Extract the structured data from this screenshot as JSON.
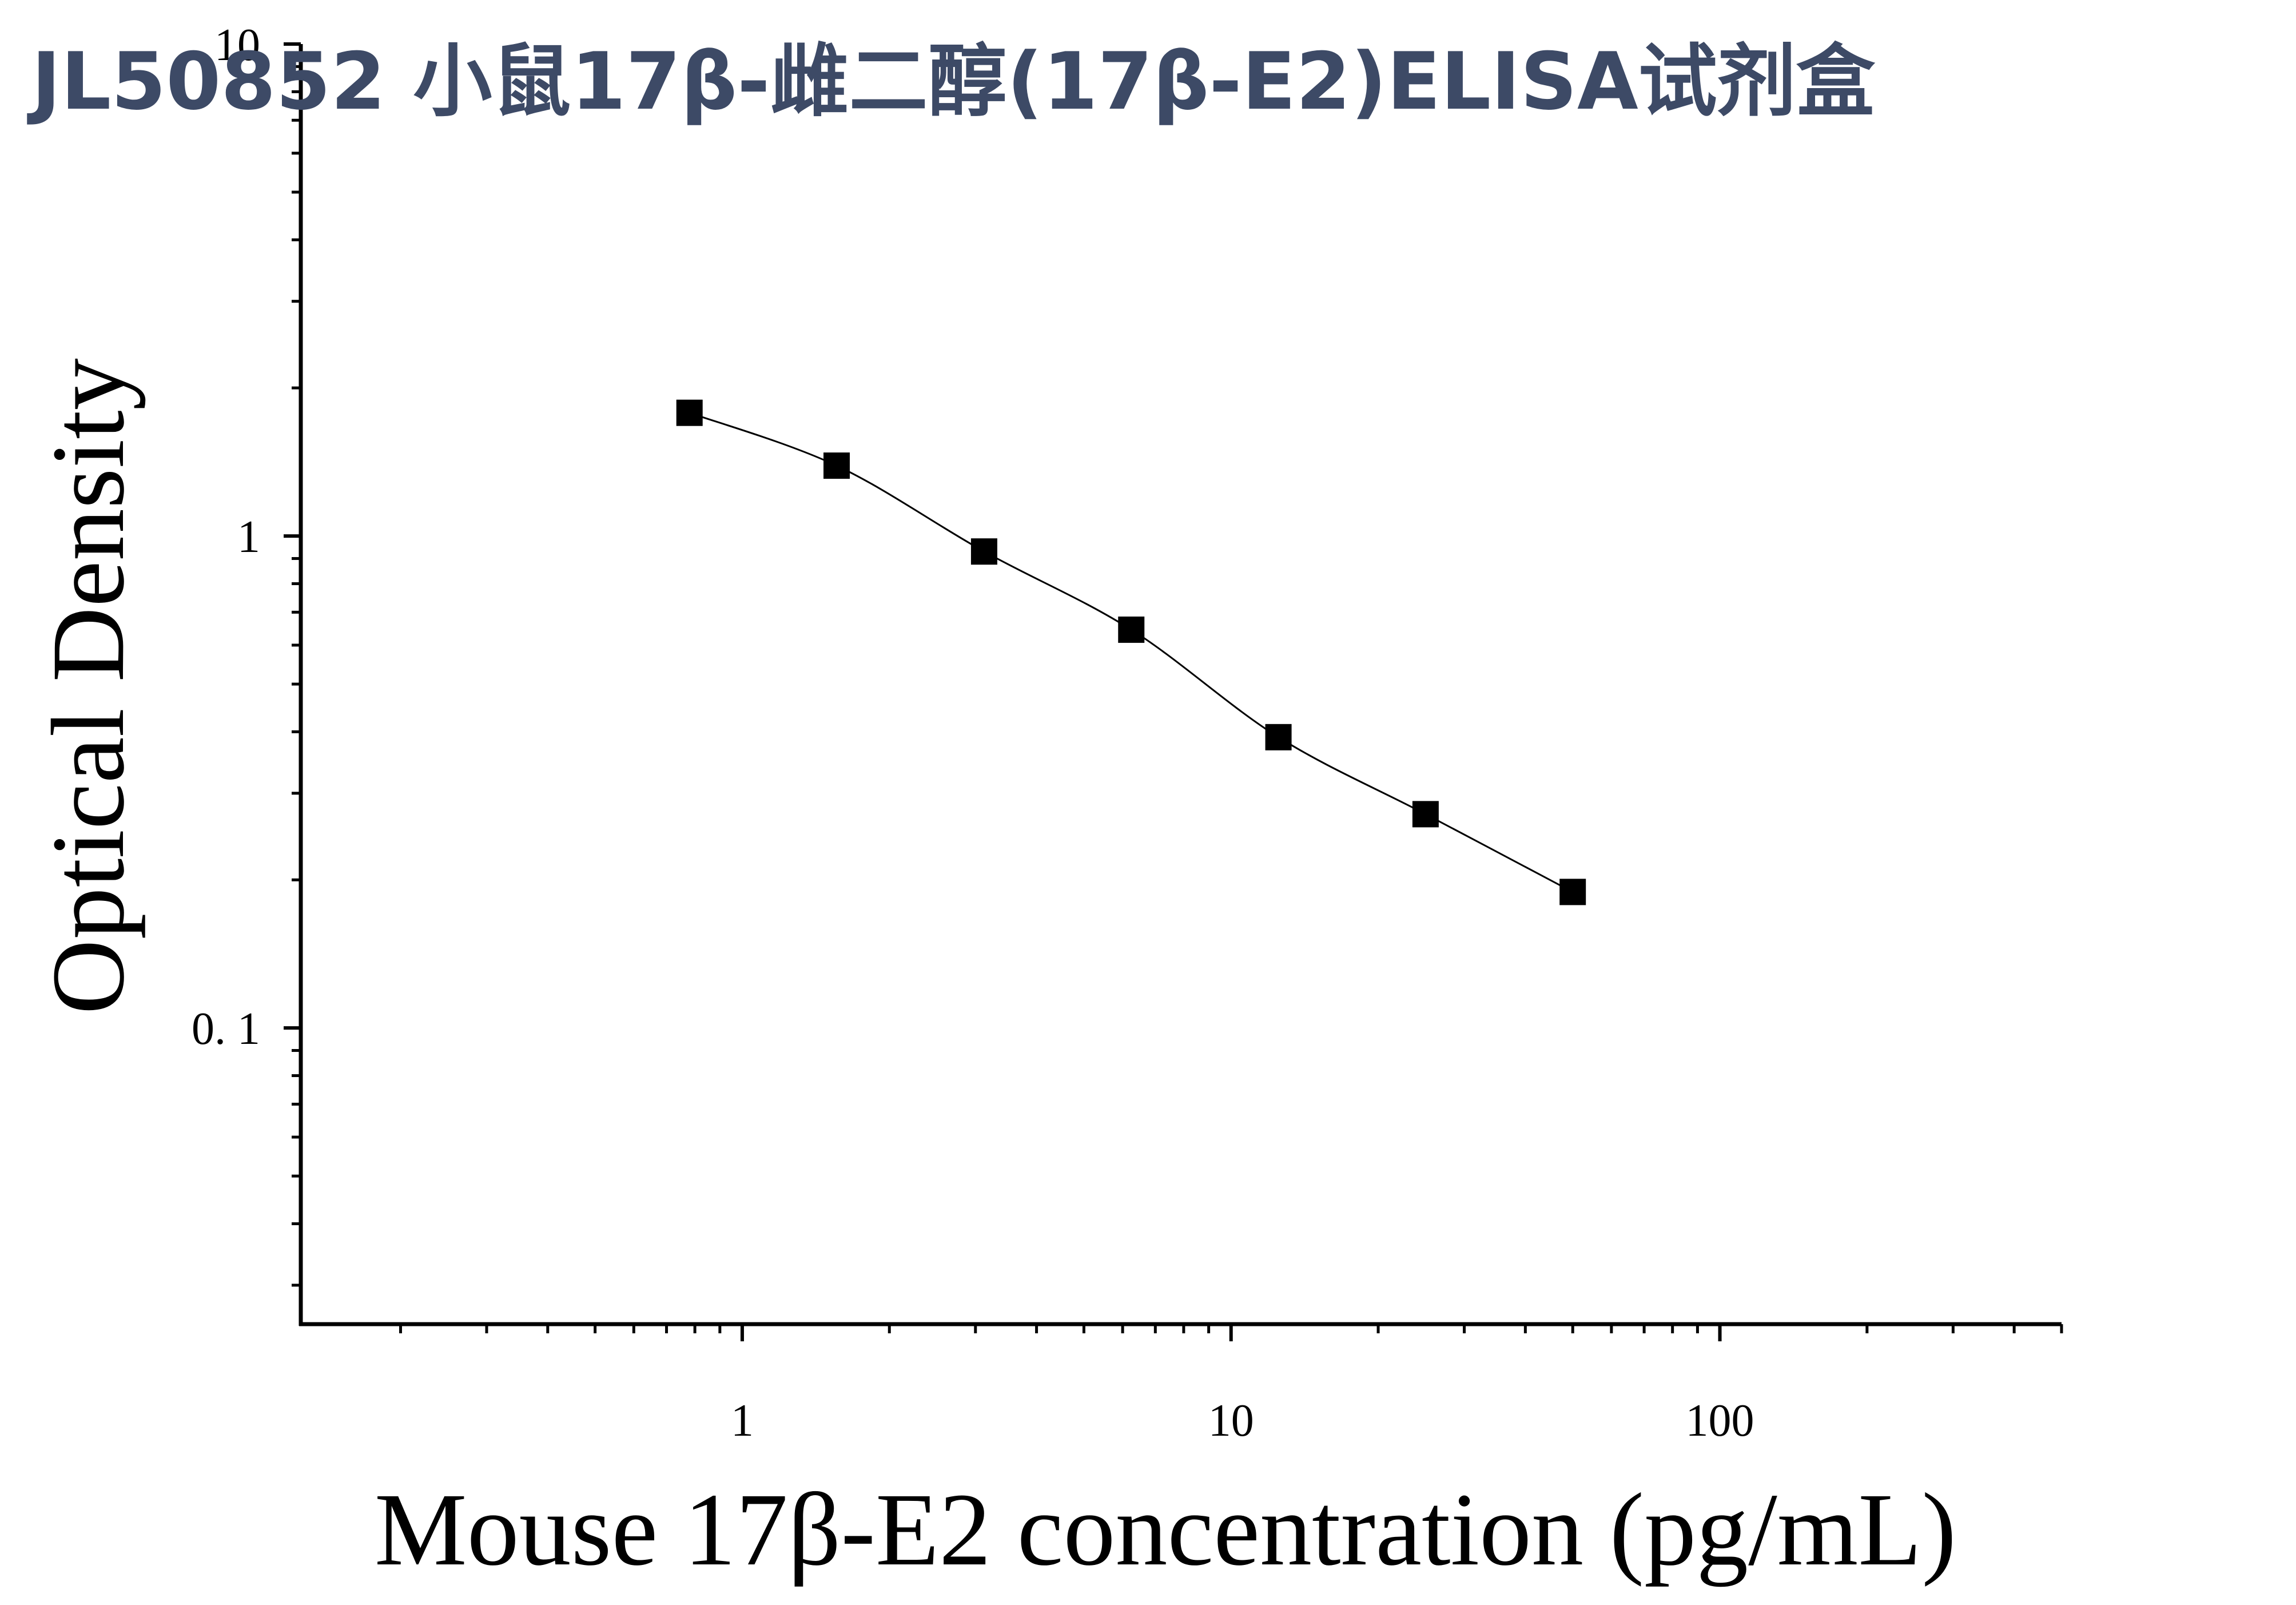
{
  "chart_data": {
    "type": "scatter",
    "title": "JL50852 小鼠17β-雌二醇(17β-E2)ELISA试剂盒",
    "x_label": "Mouse 17β-E2 concentration (pg/mL)",
    "y_label": "Optical Density",
    "x": [
      0.78,
      1.56,
      3.125,
      6.25,
      12.5,
      25,
      50
    ],
    "values": [
      1.78,
      1.39,
      0.93,
      0.645,
      0.39,
      0.272,
      0.189
    ],
    "color": "#000000",
    "curve": true,
    "xscale": "log",
    "yscale": "log",
    "xlim": [
      0.125,
      500
    ],
    "ylim": [
      0.025,
      10
    ],
    "xticks": [
      1,
      10,
      100
    ],
    "yticks": [
      {
        "value": 0.1,
        "label": "0. 1"
      },
      1,
      10
    ],
    "xminor_ticks": [
      0.2,
      0.3,
      0.4,
      0.5,
      0.6,
      0.7,
      0.8,
      0.9,
      2,
      3,
      4,
      5,
      6,
      7,
      8,
      9,
      20,
      30,
      40,
      50,
      60,
      70,
      80,
      90,
      200,
      300,
      400,
      500
    ],
    "yminor_ticks": [
      0.03,
      0.04,
      0.05,
      0.06,
      0.07,
      0.08,
      0.09,
      0.2,
      0.3,
      0.4,
      0.5,
      0.6,
      0.7,
      0.8,
      0.9,
      2,
      3,
      4,
      5,
      6,
      7,
      8,
      9
    ],
    "grid": false
  }
}
